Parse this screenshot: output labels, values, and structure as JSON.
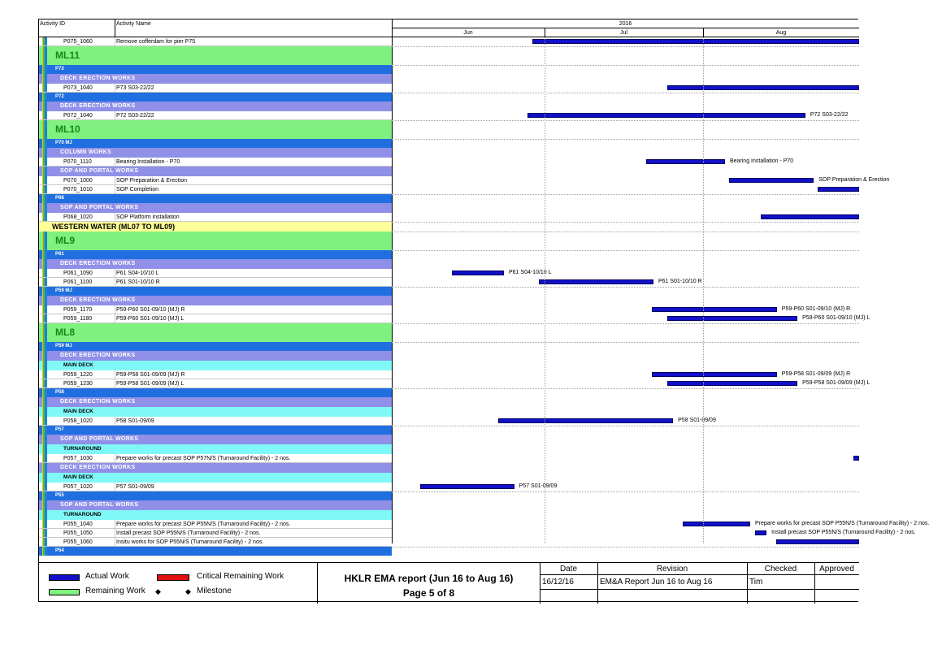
{
  "header": {
    "activity_id": "Activity ID",
    "activity_name": "Activity Name",
    "year": "2016",
    "months": [
      "Jun",
      "Jul",
      "Aug"
    ]
  },
  "rows": [
    {
      "kind": "act",
      "id": "P075_1060",
      "name": "Remove cofferdam for pier P75",
      "bar": [
        0.3,
        1.0
      ],
      "label": ""
    },
    {
      "kind": "ml",
      "name": "ML11"
    },
    {
      "kind": "blue",
      "name": "P73"
    },
    {
      "kind": "purple",
      "name": "DECK ERECTION WORKS"
    },
    {
      "kind": "act",
      "id": "P073_1040",
      "name": "P73 S03-22/22",
      "bar": [
        0.59,
        1.0
      ],
      "label": ""
    },
    {
      "kind": "blue",
      "name": "P72"
    },
    {
      "kind": "purple",
      "name": "DECK ERECTION WORKS"
    },
    {
      "kind": "act",
      "id": "P072_1040",
      "name": "P72 S03-22/22",
      "bar": [
        0.29,
        0.885
      ],
      "label": "P72 S03-22/22"
    },
    {
      "kind": "ml",
      "name": "ML10"
    },
    {
      "kind": "blue",
      "name": "P70 MJ"
    },
    {
      "kind": "purple",
      "name": "COLUMN WORKS"
    },
    {
      "kind": "act",
      "id": "P070_1110",
      "name": "Bearing Installation - P70",
      "bar": [
        0.545,
        0.713
      ],
      "label": "Bearing Installation - P70"
    },
    {
      "kind": "purple",
      "name": "SOP AND PORTAL WORKS"
    },
    {
      "kind": "act",
      "id": "P070_1000",
      "name": "SOP Preparation & Erection",
      "bar": [
        0.722,
        0.903
      ],
      "label": "SOP Preparation & Erection"
    },
    {
      "kind": "act",
      "id": "P070_1010",
      "name": "SOP Completion",
      "bar": [
        0.912,
        1.0
      ],
      "label": ""
    },
    {
      "kind": "blue",
      "name": "P68"
    },
    {
      "kind": "purple",
      "name": "SOP AND PORTAL WORKS"
    },
    {
      "kind": "act",
      "id": "P068_1020",
      "name": "SOP Platform installation",
      "bar": [
        0.79,
        1.0
      ],
      "label": ""
    },
    {
      "kind": "yellow",
      "name": "WESTERN WATER (ML07 TO ML09)"
    },
    {
      "kind": "ml",
      "name": "ML9"
    },
    {
      "kind": "blue",
      "name": "P61"
    },
    {
      "kind": "purple",
      "name": "DECK ERECTION WORKS"
    },
    {
      "kind": "act",
      "id": "P061_1090",
      "name": "P61 S04-10/10 L",
      "bar": [
        0.128,
        0.24
      ],
      "label": "P61 S04-10/10 L"
    },
    {
      "kind": "act",
      "id": "P061_1100",
      "name": "P61 S01-10/10 R",
      "bar": [
        0.315,
        0.56
      ],
      "label": "P61 S01-10/10 R"
    },
    {
      "kind": "blue",
      "name": "P59 MJ"
    },
    {
      "kind": "purple",
      "name": "DECK ERECTION WORKS"
    },
    {
      "kind": "act",
      "id": "P059_1170",
      "name": "P59-P60 S01-09/10 (MJ) R",
      "bar": [
        0.556,
        0.824
      ],
      "label": "P59-P60 S01-09/10 (MJ) R"
    },
    {
      "kind": "act",
      "id": "P059_1180",
      "name": "P59-P60 S01-09/10 (MJ) L",
      "bar": [
        0.59,
        0.868
      ],
      "label": "P59-P60 S01-09/10 (MJ) L"
    },
    {
      "kind": "ml",
      "name": "ML8"
    },
    {
      "kind": "blue",
      "name": "P59 MJ"
    },
    {
      "kind": "purple",
      "name": "DECK ERECTION WORKS"
    },
    {
      "kind": "cyan",
      "name": "MAIN DECK"
    },
    {
      "kind": "act",
      "id": "P059_1220",
      "name": "P59-P58 S01-09/09 (MJ) R",
      "bar": [
        0.556,
        0.824
      ],
      "label": "P59-P58 S01-09/09 (MJ) R"
    },
    {
      "kind": "act",
      "id": "P059_1230",
      "name": "P59-P58 S01-09/09 (MJ) L",
      "bar": [
        0.59,
        0.868
      ],
      "label": "P59-P58 S01-09/09 (MJ) L"
    },
    {
      "kind": "blue",
      "name": "P58"
    },
    {
      "kind": "purple",
      "name": "DECK ERECTION WORKS"
    },
    {
      "kind": "cyan",
      "name": "MAIN DECK"
    },
    {
      "kind": "act",
      "id": "P058_1020",
      "name": "P58 S01-09/09",
      "bar": [
        0.227,
        0.602
      ],
      "label": "P58 S01-09/09"
    },
    {
      "kind": "blue",
      "name": "P57"
    },
    {
      "kind": "purple",
      "name": "SOP AND PORTAL WORKS"
    },
    {
      "kind": "cyan",
      "name": "TURNAROUND"
    },
    {
      "kind": "act",
      "id": "P057_1030",
      "name": "Prepare works for precast SOP P57N/S (Turnaround Facility) - 2 nos.",
      "bar": [
        0.987,
        1.0
      ],
      "label": ""
    },
    {
      "kind": "purple",
      "name": "DECK ERECTION WORKS"
    },
    {
      "kind": "cyan",
      "name": "MAIN DECK"
    },
    {
      "kind": "act",
      "id": "P057_1020",
      "name": "P57 S01-09/09",
      "bar": [
        0.06,
        0.262
      ],
      "label": "P57 S01-09/09"
    },
    {
      "kind": "blue",
      "name": "P55"
    },
    {
      "kind": "purple",
      "name": "SOP AND PORTAL WORKS"
    },
    {
      "kind": "cyan",
      "name": "TURNAROUND"
    },
    {
      "kind": "act",
      "id": "P055_1040",
      "name": "Prepare works for precast SOP P55N/S (Turnaround Facility) - 2 nos.",
      "bar": [
        0.622,
        0.767
      ],
      "label": "Prepare works for precast SOP P55N/S (Turnaround Facility) - 2 nos."
    },
    {
      "kind": "act",
      "id": "P055_1050",
      "name": "Install precast SOP P55N/S (Turnaround Facility) - 2 nos.",
      "bar": [
        0.778,
        0.802
      ],
      "label": "Install precast SOP P55N/S (Turnaround Facility) - 2 nos."
    },
    {
      "kind": "act",
      "id": "P055_1060",
      "name": "Insitu works for SOP P55N/S (Turnaround Facility) - 2 nos.",
      "bar": [
        0.822,
        1.0
      ],
      "label": ""
    },
    {
      "kind": "blue",
      "name": "P54"
    }
  ],
  "legend": {
    "actual_work": "Actual Work",
    "critical_remaining": "Critical Remaining Work",
    "remaining_work": "Remaining Work",
    "milestone": "Milestone",
    "colors": {
      "actual": "#1010c8",
      "critical": "#e01010",
      "remaining": "#80f080"
    }
  },
  "title_block": {
    "title": "HKLR EMA report (Jun 16 to Aug 16)",
    "page": "Page 5 of 8",
    "col_date": "Date",
    "col_revision": "Revision",
    "col_checked": "Checked",
    "col_approved": "Approved",
    "date": "16/12/16",
    "revision": "EM&A Report Jun 16 to Aug 16",
    "checked": "Tim",
    "approved": ""
  }
}
